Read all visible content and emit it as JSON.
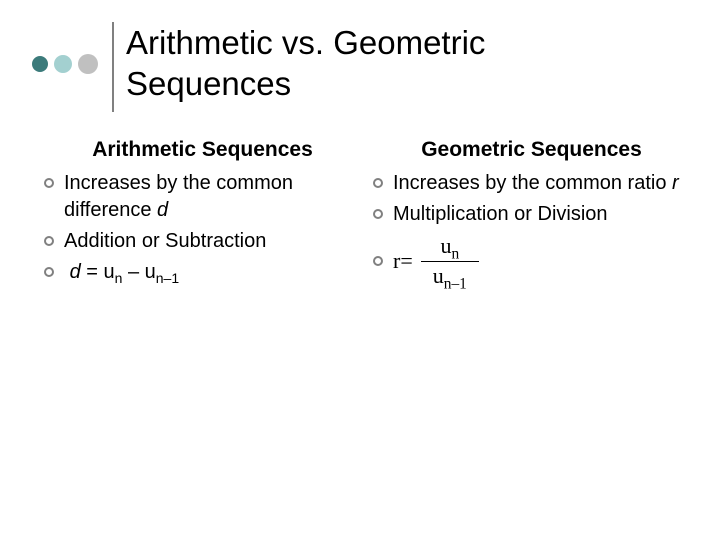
{
  "colors": {
    "dot1": "#3c7b7b",
    "dot2": "#a3d0d0",
    "dot3": "#c0c0c0",
    "divider": "#808080",
    "bullet_border": "#808080",
    "background": "#ffffff",
    "text": "#000000"
  },
  "title": "Arithmetic vs. Geometric Sequences",
  "left": {
    "heading": "Arithmetic Sequences",
    "item1_prefix": "Increases by the common difference ",
    "item1_var": "d",
    "item2": "Addition or Subtraction",
    "formula_var": "d",
    "formula_eq": " = u",
    "formula_sub1": "n",
    "formula_mid": " – u",
    "formula_sub2": "n–1"
  },
  "right": {
    "heading": "Geometric Sequences",
    "item1_prefix": "Increases by the common ratio ",
    "item1_var": "r",
    "item2": "Multiplication or Division",
    "formula_lhs": "r",
    "formula_eq": " = ",
    "formula_num_base": "u",
    "formula_num_sub": "n",
    "formula_den_base": "u",
    "formula_den_sub": "n–1"
  }
}
